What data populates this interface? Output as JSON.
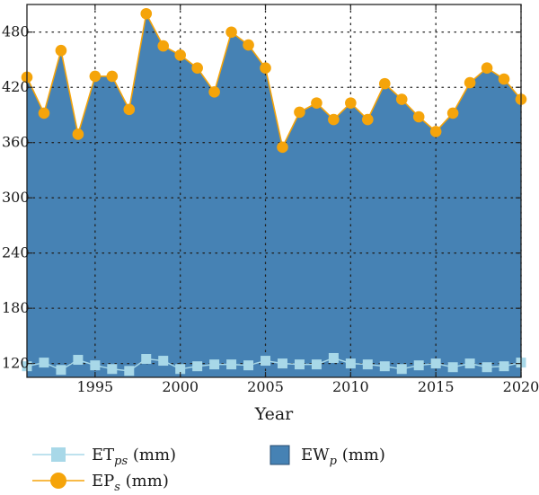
{
  "chart_data": {
    "type": "area",
    "xlabel": "Year",
    "ylabel": "",
    "xlim": [
      1991,
      2020
    ],
    "ylim": [
      105,
      510
    ],
    "x_ticks": [
      1995,
      2000,
      2005,
      2010,
      2015,
      2020
    ],
    "y_ticks": [
      120,
      180,
      240,
      300,
      360,
      420,
      480
    ],
    "grid": "dotted",
    "legend_position": "bottom",
    "colors": {
      "area": "#4682b4",
      "eps": "#f5a40a",
      "etps": "#a8d8e8",
      "frame": "#222222"
    },
    "x": [
      1991,
      1992,
      1993,
      1994,
      1995,
      1996,
      1997,
      1998,
      1999,
      2000,
      2001,
      2002,
      2003,
      2004,
      2005,
      2006,
      2007,
      2008,
      2009,
      2010,
      2011,
      2012,
      2013,
      2014,
      2015,
      2016,
      2017,
      2018,
      2019,
      2020
    ],
    "series": [
      {
        "name_main": "ET",
        "name_sub": "ps",
        "name_suffix": " (mm)",
        "marker": "square",
        "color": "#a8d8e8",
        "values": [
          117,
          121,
          113,
          124,
          118,
          114,
          112,
          125,
          123,
          114,
          117,
          119,
          119,
          118,
          123,
          120,
          119,
          119,
          126,
          120,
          119,
          117,
          114,
          118,
          120,
          116,
          120,
          116,
          117,
          121
        ]
      },
      {
        "name_main": "EP",
        "name_sub": "s",
        "name_suffix": " (mm)",
        "marker": "circle",
        "color": "#f5a40a",
        "values": [
          431,
          392,
          460,
          369,
          432,
          432,
          396,
          500,
          465,
          455,
          441,
          415,
          480,
          466,
          441,
          355,
          393,
          403,
          385,
          403,
          385,
          424,
          407,
          388,
          372,
          392,
          425,
          441,
          429,
          407
        ]
      },
      {
        "name_main": "EW",
        "name_sub": "p",
        "name_suffix": " (mm)",
        "marker": "area",
        "color": "#4682b4",
        "values": [
          431,
          392,
          460,
          369,
          432,
          432,
          396,
          500,
          465,
          455,
          441,
          415,
          480,
          466,
          441,
          355,
          393,
          403,
          385,
          403,
          385,
          424,
          407,
          388,
          372,
          392,
          425,
          441,
          429,
          407
        ]
      }
    ]
  }
}
